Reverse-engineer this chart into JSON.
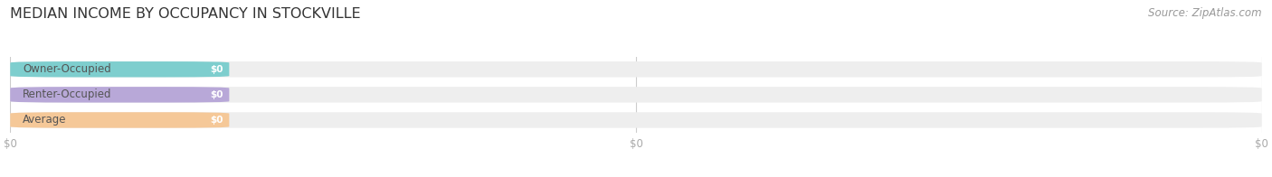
{
  "title": "MEDIAN INCOME BY OCCUPANCY IN STOCKVILLE",
  "source": "Source: ZipAtlas.com",
  "categories": [
    "Owner-Occupied",
    "Renter-Occupied",
    "Average"
  ],
  "values": [
    0,
    0,
    0
  ],
  "bar_colors": [
    "#7ecece",
    "#b8a8d8",
    "#f5c898"
  ],
  "bar_bg_color": "#eeeeee",
  "value_labels": [
    "$0",
    "$0",
    "$0"
  ],
  "x_tick_labels": [
    "$0",
    "$0",
    "$0"
  ],
  "x_tick_positions": [
    0.0,
    0.5,
    1.0
  ],
  "xlim": [
    0.0,
    1.0
  ],
  "background_color": "#ffffff",
  "title_fontsize": 11.5,
  "source_fontsize": 8.5,
  "bar_label_fontsize": 8.5,
  "value_fontsize": 7.5,
  "tick_fontsize": 8.5,
  "colored_portion": 0.175
}
